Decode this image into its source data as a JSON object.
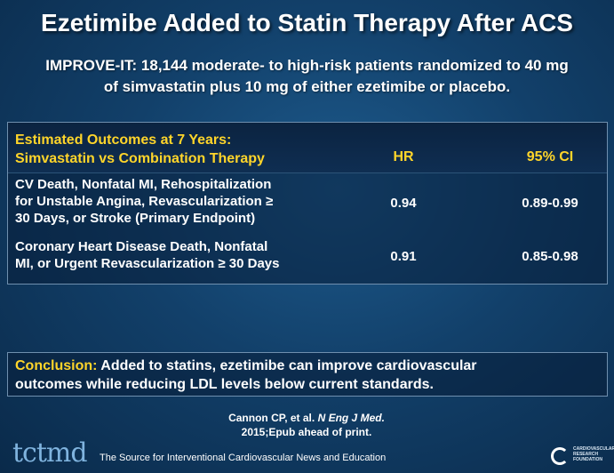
{
  "slide": {
    "title": "Ezetimibe Added to Statin Therapy After ACS",
    "subtitle_line1": "IMPROVE-IT: 18,144 moderate- to high-risk patients randomized to 40 mg",
    "subtitle_line2": "of simvastatin plus 10 mg of either ezetimibe or placebo."
  },
  "table": {
    "header": {
      "label_line1": "Estimated Outcomes at 7 Years:",
      "label_line2": "Simvastatin vs Combination Therapy",
      "hr": "HR",
      "ci": "95% CI"
    },
    "rows": [
      {
        "outcome_line1": "CV Death, Nonfatal MI, Rehospitalization",
        "outcome_line2": "for Unstable Angina, Revascularization ≥",
        "outcome_line3": "30 Days, or Stroke (Primary Endpoint)",
        "hr": "0.94",
        "ci": "0.89-0.99"
      },
      {
        "outcome_line1": "Coronary Heart Disease Death, Nonfatal",
        "outcome_line2": "MI, or Urgent Revascularization ≥ 30 Days",
        "hr": "0.91",
        "ci": "0.85-0.98"
      }
    ]
  },
  "conclusion": {
    "label": "Conclusion:",
    "text_line1": " Added to statins, ezetimibe can improve cardiovascular",
    "text_line2": "outcomes while reducing LDL levels below current standards."
  },
  "citation": {
    "authors": "Cannon CP, et al. ",
    "journal": "N Eng J Med.",
    "details": "2015;Epub ahead of print."
  },
  "footer": {
    "logo": "tctmd",
    "tagline": "The Source for Interventional Cardiovascular News and Education",
    "crf_line1": "CARDIOVASCULAR",
    "crf_line2": "RESEARCH",
    "crf_line3": "FOUNDATION"
  },
  "colors": {
    "accent": "#ffd52a",
    "background": "#12406a"
  }
}
